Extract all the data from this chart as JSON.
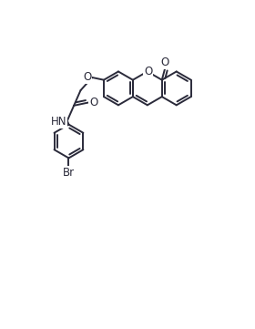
{
  "bg_color": "#ffffff",
  "bond_color": "#2a2a3a",
  "fig_width": 2.8,
  "fig_height": 3.61,
  "dpi": 100,
  "lw": 1.4,
  "r": 0.55,
  "xlim": [
    -1.5,
    4.5
  ],
  "ylim": [
    -5.5,
    2.8
  ]
}
